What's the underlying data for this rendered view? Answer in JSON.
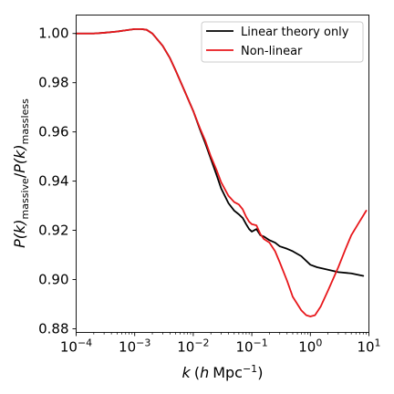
{
  "chart_data": {
    "type": "line",
    "xscale": "log",
    "xlim": [
      0.0001,
      10
    ],
    "ylim": [
      0.8785,
      1.0075
    ],
    "xlabel_parts": {
      "k": "k",
      "open": "(",
      "h": "h",
      "unit": "Mpc",
      "exp": "−1",
      "close": ")"
    },
    "ylabel_parts": {
      "p1": "P(k)",
      "sub1": "massive",
      "slash": "/",
      "p2": "P(k)",
      "sub2": "massless"
    },
    "x_ticks": [
      {
        "value": 0.0001,
        "base": "10",
        "exp": "−4"
      },
      {
        "value": 0.001,
        "base": "10",
        "exp": "−3"
      },
      {
        "value": 0.01,
        "base": "10",
        "exp": "−2"
      },
      {
        "value": 0.1,
        "base": "10",
        "exp": "−1"
      },
      {
        "value": 1,
        "base": "10",
        "exp": "0"
      },
      {
        "value": 10,
        "base": "10",
        "exp": "1"
      }
    ],
    "y_ticks": [
      {
        "value": 0.88,
        "label": "0.88"
      },
      {
        "value": 0.9,
        "label": "0.90"
      },
      {
        "value": 0.92,
        "label": "0.92"
      },
      {
        "value": 0.94,
        "label": "0.94"
      },
      {
        "value": 0.96,
        "label": "0.96"
      },
      {
        "value": 0.98,
        "label": "0.98"
      },
      {
        "value": 1.0,
        "label": "1.00"
      }
    ],
    "grid": false,
    "legend_position": "top-right",
    "series": [
      {
        "name": "Linear theory only",
        "color": "#000000",
        "points": [
          [
            0.0001,
            1.0
          ],
          [
            0.0002,
            1.0
          ],
          [
            0.0003,
            1.0003
          ],
          [
            0.0005,
            1.0008
          ],
          [
            0.0007,
            1.0013
          ],
          [
            0.001,
            1.0018
          ],
          [
            0.0013,
            1.0018
          ],
          [
            0.0016,
            1.0015
          ],
          [
            0.002,
            1.0
          ],
          [
            0.003,
            0.995
          ],
          [
            0.004,
            0.99
          ],
          [
            0.005,
            0.985
          ],
          [
            0.007,
            0.977
          ],
          [
            0.01,
            0.9685
          ],
          [
            0.013,
            0.961
          ],
          [
            0.016,
            0.9555
          ],
          [
            0.02,
            0.949
          ],
          [
            0.025,
            0.9425
          ],
          [
            0.03,
            0.937
          ],
          [
            0.04,
            0.931
          ],
          [
            0.05,
            0.928
          ],
          [
            0.06,
            0.9265
          ],
          [
            0.07,
            0.925
          ],
          [
            0.08,
            0.9225
          ],
          [
            0.09,
            0.9205
          ],
          [
            0.1,
            0.9195
          ],
          [
            0.12,
            0.9205
          ],
          [
            0.14,
            0.918
          ],
          [
            0.16,
            0.9175
          ],
          [
            0.2,
            0.916
          ],
          [
            0.25,
            0.915
          ],
          [
            0.3,
            0.9135
          ],
          [
            0.4,
            0.9125
          ],
          [
            0.5,
            0.9115
          ],
          [
            0.7,
            0.9095
          ],
          [
            1.0,
            0.906
          ],
          [
            1.3,
            0.905
          ],
          [
            2.0,
            0.904
          ],
          [
            3.0,
            0.903
          ],
          [
            5.0,
            0.9025
          ],
          [
            8.0,
            0.9015
          ]
        ]
      },
      {
        "name": "Non-linear",
        "color": "#e8171b",
        "points": [
          [
            0.0001,
            1.0
          ],
          [
            0.0002,
            1.0
          ],
          [
            0.0003,
            1.0003
          ],
          [
            0.0005,
            1.0008
          ],
          [
            0.0007,
            1.0013
          ],
          [
            0.001,
            1.0018
          ],
          [
            0.0013,
            1.0018
          ],
          [
            0.0016,
            1.0015
          ],
          [
            0.002,
            1.0
          ],
          [
            0.003,
            0.995
          ],
          [
            0.004,
            0.99
          ],
          [
            0.005,
            0.985
          ],
          [
            0.007,
            0.977
          ],
          [
            0.01,
            0.9685
          ],
          [
            0.013,
            0.9615
          ],
          [
            0.016,
            0.9565
          ],
          [
            0.02,
            0.95
          ],
          [
            0.025,
            0.9445
          ],
          [
            0.03,
            0.9395
          ],
          [
            0.04,
            0.934
          ],
          [
            0.05,
            0.9315
          ],
          [
            0.06,
            0.9305
          ],
          [
            0.07,
            0.9285
          ],
          [
            0.08,
            0.9255
          ],
          [
            0.09,
            0.9235
          ],
          [
            0.1,
            0.9225
          ],
          [
            0.12,
            0.922
          ],
          [
            0.14,
            0.9185
          ],
          [
            0.16,
            0.9165
          ],
          [
            0.2,
            0.915
          ],
          [
            0.25,
            0.9115
          ],
          [
            0.3,
            0.907
          ],
          [
            0.4,
            0.8995
          ],
          [
            0.5,
            0.893
          ],
          [
            0.7,
            0.8875
          ],
          [
            0.85,
            0.8855
          ],
          [
            1.0,
            0.885
          ],
          [
            1.2,
            0.8855
          ],
          [
            1.5,
            0.889
          ],
          [
            2.0,
            0.8955
          ],
          [
            3.0,
            0.905
          ],
          [
            4.0,
            0.9125
          ],
          [
            5.0,
            0.918
          ],
          [
            6.5,
            0.9225
          ],
          [
            8.0,
            0.926
          ],
          [
            9.0,
            0.928
          ]
        ]
      }
    ]
  }
}
